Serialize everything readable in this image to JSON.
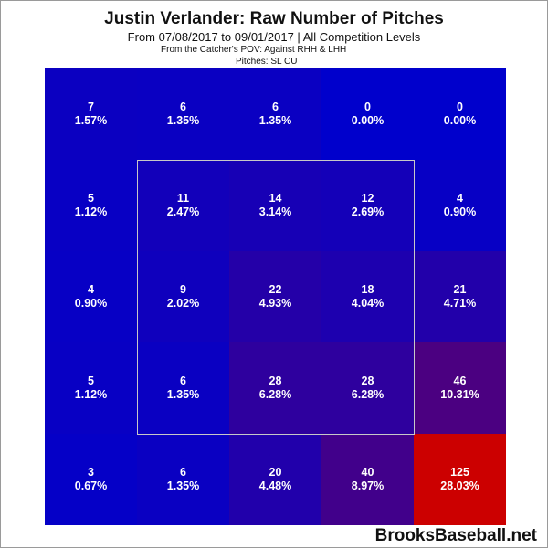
{
  "title": "Justin Verlander: Raw Number of Pitches",
  "subtitle": "From 07/08/2017 to 09/01/2017 | All Competition Levels",
  "pov_line": "From the Catcher's POV:  Against RHH & LHH",
  "pitches_line": "Pitches:  SL  CU",
  "brand": "BrooksBaseball.net",
  "chart_data": {
    "type": "heatmap",
    "rows": 5,
    "cols": 5,
    "strike_zone": {
      "rows": [
        1,
        3
      ],
      "cols": [
        1,
        3
      ]
    },
    "color_scale": {
      "low": "#0000cc",
      "high": "#cc0000"
    },
    "cells": [
      [
        {
          "count": "7",
          "pct": "1.57%"
        },
        {
          "count": "6",
          "pct": "1.35%"
        },
        {
          "count": "6",
          "pct": "1.35%"
        },
        {
          "count": "0",
          "pct": "0.00%"
        },
        {
          "count": "0",
          "pct": "0.00%"
        }
      ],
      [
        {
          "count": "5",
          "pct": "1.12%"
        },
        {
          "count": "11",
          "pct": "2.47%"
        },
        {
          "count": "14",
          "pct": "3.14%"
        },
        {
          "count": "12",
          "pct": "2.69%"
        },
        {
          "count": "4",
          "pct": "0.90%"
        }
      ],
      [
        {
          "count": "4",
          "pct": "0.90%"
        },
        {
          "count": "9",
          "pct": "2.02%"
        },
        {
          "count": "22",
          "pct": "4.93%"
        },
        {
          "count": "18",
          "pct": "4.04%"
        },
        {
          "count": "21",
          "pct": "4.71%"
        }
      ],
      [
        {
          "count": "5",
          "pct": "1.12%"
        },
        {
          "count": "6",
          "pct": "1.35%"
        },
        {
          "count": "28",
          "pct": "6.28%"
        },
        {
          "count": "28",
          "pct": "6.28%"
        },
        {
          "count": "46",
          "pct": "10.31%"
        }
      ],
      [
        {
          "count": "3",
          "pct": "0.67%"
        },
        {
          "count": "6",
          "pct": "1.35%"
        },
        {
          "count": "20",
          "pct": "4.48%"
        },
        {
          "count": "40",
          "pct": "8.97%"
        },
        {
          "count": "125",
          "pct": "28.03%"
        }
      ]
    ]
  }
}
